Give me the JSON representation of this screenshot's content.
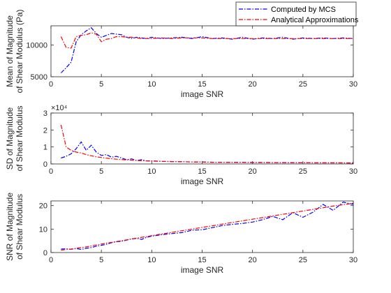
{
  "colors": {
    "mcs": "#0000ff",
    "analytical": "#ff0000",
    "axis": "#262626"
  },
  "legend": {
    "placement": "top-right",
    "entries": [
      "Computed by MCS",
      "Analytical Approximations"
    ]
  },
  "chart_data": [
    {
      "type": "line",
      "xlabel": "image SNR",
      "ylabel": [
        "Mean of Magnitude",
        "of Shear Modulus (Pa)"
      ],
      "xlim": [
        0,
        30
      ],
      "ylim": [
        5000,
        13000
      ],
      "xticks": [
        "0",
        "5",
        "10",
        "15",
        "20",
        "25",
        "30"
      ],
      "yticks": [
        "5000",
        "10000"
      ],
      "ytick_values": [
        5000,
        10000
      ],
      "exponent": "",
      "x": [
        1,
        1.5,
        2,
        2.5,
        3,
        3.5,
        4,
        4.5,
        5,
        5.5,
        6,
        6.5,
        7,
        7.5,
        8,
        8.5,
        9,
        9.5,
        10,
        11,
        12,
        13,
        14,
        15,
        16,
        17,
        18,
        19,
        20,
        21,
        22,
        23,
        24,
        25,
        26,
        27,
        28,
        29,
        30
      ],
      "series": [
        {
          "name": "Computed by MCS",
          "style": "dash-dot",
          "color": "#0000ff",
          "values": [
            5600,
            6400,
            7300,
            10500,
            11600,
            12200,
            12700,
            11800,
            11200,
            11500,
            11800,
            11700,
            11600,
            11200,
            11000,
            11200,
            11100,
            11000,
            11200,
            11000,
            11100,
            11200,
            11000,
            11300,
            11000,
            11100,
            10900,
            11200,
            10900,
            11100,
            11000,
            11200,
            10900,
            11100,
            11000,
            11100,
            11000,
            11100,
            11000
          ]
        },
        {
          "name": "Analytical Approximations",
          "style": "dash-dot",
          "color": "#ff0000",
          "values": [
            11300,
            9600,
            9500,
            11300,
            11500,
            11600,
            11900,
            11700,
            10500,
            10900,
            11000,
            11300,
            11300,
            11200,
            11200,
            11100,
            11000,
            11000,
            11000,
            11100,
            11000,
            11100,
            11100,
            11100,
            11000,
            11000,
            11000,
            11000,
            11000,
            11000,
            11000,
            11000,
            11000,
            11000,
            11000,
            11000,
            11000,
            11000,
            11000
          ]
        }
      ]
    },
    {
      "type": "line",
      "xlabel": "image SNR",
      "ylabel": [
        "SD of Magnitude",
        "of Shear Modulus"
      ],
      "xlim": [
        0,
        30
      ],
      "ylim": [
        0,
        3
      ],
      "xticks": [
        "0",
        "5",
        "10",
        "15",
        "20",
        "25",
        "30"
      ],
      "yticks": [
        "0",
        "1",
        "2",
        "3"
      ],
      "ytick_values": [
        0,
        1,
        2,
        3
      ],
      "exponent": "×10⁴",
      "x": [
        1,
        1.5,
        2,
        2.5,
        3,
        3.5,
        4,
        4.5,
        5,
        5.5,
        6,
        6.5,
        7,
        7.5,
        8,
        8.5,
        9,
        9.5,
        10,
        11,
        12,
        13,
        14,
        15,
        16,
        17,
        18,
        19,
        20,
        21,
        22,
        23,
        24,
        25,
        26,
        27,
        28,
        29,
        30
      ],
      "series": [
        {
          "name": "Computed by MCS",
          "style": "dash-dot",
          "color": "#0000ff",
          "values": [
            0.35,
            0.45,
            0.6,
            0.9,
            1.3,
            0.8,
            1.1,
            0.7,
            0.5,
            0.55,
            0.4,
            0.45,
            0.35,
            0.25,
            0.3,
            0.2,
            0.25,
            0.18,
            0.18,
            0.15,
            0.14,
            0.13,
            0.12,
            0.12,
            0.1,
            0.1,
            0.1,
            0.1,
            0.09,
            0.09,
            0.08,
            0.08,
            0.08,
            0.07,
            0.07,
            0.07,
            0.07,
            0.06,
            0.06
          ]
        },
        {
          "name": "Analytical Approximations",
          "style": "dash-dot",
          "color": "#ff0000",
          "values": [
            2.3,
            1.0,
            0.8,
            0.7,
            0.65,
            0.55,
            0.48,
            0.42,
            0.38,
            0.34,
            0.31,
            0.28,
            0.26,
            0.24,
            0.22,
            0.2,
            0.19,
            0.18,
            0.17,
            0.15,
            0.14,
            0.13,
            0.12,
            0.11,
            0.1,
            0.1,
            0.09,
            0.09,
            0.08,
            0.08,
            0.08,
            0.07,
            0.07,
            0.07,
            0.06,
            0.06,
            0.06,
            0.06,
            0.05
          ]
        }
      ]
    },
    {
      "type": "line",
      "xlabel": "image SNR",
      "ylabel": [
        "SNR of Magnitude",
        "of Shear Modulus"
      ],
      "xlim": [
        0,
        30
      ],
      "ylim": [
        0,
        22
      ],
      "xticks": [
        "0",
        "5",
        "10",
        "15",
        "20",
        "25",
        "30"
      ],
      "yticks": [
        "0",
        "10",
        "20"
      ],
      "ytick_values": [
        0,
        10,
        20
      ],
      "exponent": "",
      "x": [
        1,
        1.5,
        2,
        2.5,
        3,
        3.5,
        4,
        4.5,
        5,
        5.5,
        6,
        6.5,
        7,
        7.5,
        8,
        8.5,
        9,
        9.5,
        10,
        11,
        12,
        13,
        14,
        15,
        16,
        17,
        18,
        19,
        20,
        21,
        22,
        23,
        24,
        25,
        26,
        27,
        28,
        29,
        30
      ],
      "series": [
        {
          "name": "Computed by MCS",
          "style": "dash-dot",
          "color": "#0000ff",
          "values": [
            1.5,
            1.6,
            1.4,
            1.7,
            1.3,
            1.8,
            2.1,
            2.7,
            3.1,
            3.5,
            4.2,
            4.6,
            4.8,
            5.3,
            5.8,
            6.0,
            5.6,
            6.5,
            7.0,
            7.6,
            8.1,
            8.5,
            9.5,
            9.7,
            10.6,
            11.5,
            12.0,
            12.4,
            13.0,
            14.0,
            15.4,
            14.0,
            17.0,
            15.0,
            17.2,
            20.5,
            18.0,
            21.5,
            20.5
          ]
        },
        {
          "name": "Analytical Approximations",
          "style": "dash-dot",
          "color": "#ff0000",
          "values": [
            1.0,
            1.3,
            1.5,
            1.8,
            2.1,
            2.4,
            2.8,
            3.2,
            3.6,
            4.0,
            4.3,
            4.7,
            5.0,
            5.4,
            5.8,
            6.1,
            6.5,
            6.8,
            7.2,
            7.9,
            8.6,
            9.3,
            10.0,
            10.7,
            11.4,
            12.1,
            12.8,
            13.5,
            14.2,
            14.9,
            15.6,
            16.3,
            17.0,
            17.7,
            18.4,
            19.1,
            19.8,
            20.4,
            21.0
          ]
        }
      ]
    }
  ]
}
